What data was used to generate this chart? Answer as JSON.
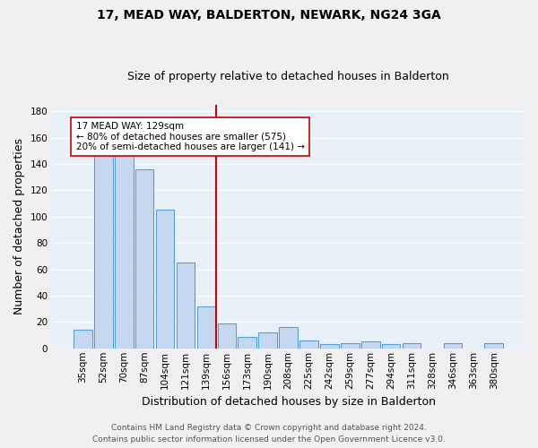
{
  "title": "17, MEAD WAY, BALDERTON, NEWARK, NG24 3GA",
  "subtitle": "Size of property relative to detached houses in Balderton",
  "xlabel": "Distribution of detached houses by size in Balderton",
  "ylabel": "Number of detached properties",
  "categories": [
    "35sqm",
    "52sqm",
    "70sqm",
    "87sqm",
    "104sqm",
    "121sqm",
    "139sqm",
    "156sqm",
    "173sqm",
    "190sqm",
    "208sqm",
    "225sqm",
    "242sqm",
    "259sqm",
    "277sqm",
    "294sqm",
    "311sqm",
    "328sqm",
    "346sqm",
    "363sqm",
    "380sqm"
  ],
  "values": [
    14,
    147,
    149,
    136,
    105,
    65,
    32,
    19,
    9,
    12,
    16,
    6,
    3,
    4,
    5,
    3,
    4,
    0,
    4,
    0,
    4
  ],
  "bar_color": "#c5d8f0",
  "bar_edge_color": "#5a9fd4",
  "vline_pos": 6.5,
  "vline_color": "#cc0000",
  "ylim": [
    0,
    185
  ],
  "yticks": [
    0,
    20,
    40,
    60,
    80,
    100,
    120,
    140,
    160,
    180
  ],
  "annotation_text": "17 MEAD WAY: 129sqm\n← 80% of detached houses are smaller (575)\n20% of semi-detached houses are larger (141) →",
  "annotation_box_color": "#ffffff",
  "annotation_border_color": "#cc0000",
  "footer_line1": "Contains HM Land Registry data © Crown copyright and database right 2024.",
  "footer_line2": "Contains public sector information licensed under the Open Government Licence v3.0.",
  "background_color": "#e8f0f8",
  "grid_color": "#ffffff",
  "title_fontsize": 10,
  "subtitle_fontsize": 9,
  "tick_fontsize": 7.5,
  "label_fontsize": 9,
  "footer_fontsize": 6.5
}
